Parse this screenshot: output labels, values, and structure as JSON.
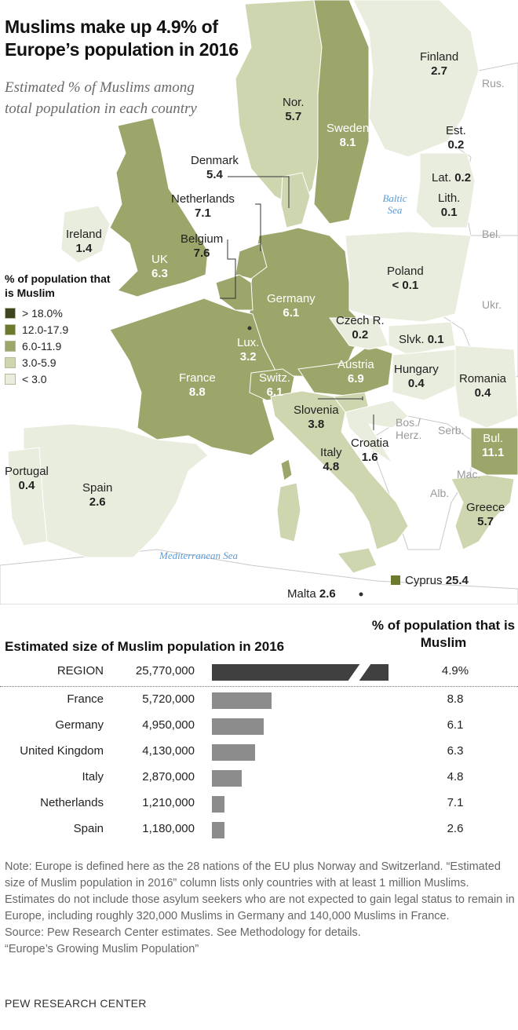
{
  "title": "Muslims make up 4.9% of Europe’s population in 2016",
  "subtitle": "Estimated % of Muslims among total population in each country",
  "colors": {
    "over_18": "#3e4420",
    "12_to_17_9": "#6c7a2b",
    "6_to_11_9": "#9da66a",
    "3_to_5_9": "#ced6b0",
    "under_3": "#e9eddd",
    "non_eu": "#ffffff",
    "region_bar": "#404040",
    "country_bar": "#8c8c8c",
    "sea_label": "#5b9bd5"
  },
  "legend": {
    "title": "% of population that is Muslim",
    "items": [
      {
        "label": "> 18.0%",
        "color": "#3e4420"
      },
      {
        "label": "12.0-17.9",
        "color": "#6c7a2b"
      },
      {
        "label": "6.0-11.9",
        "color": "#9da66a"
      },
      {
        "label": "3.0-5.9",
        "color": "#ced6b0"
      },
      {
        "label": "< 3.0",
        "color": "#e9eddd"
      }
    ]
  },
  "map_labels": {
    "finland": {
      "name": "Finland",
      "value": "2.7"
    },
    "norway": {
      "name": "Nor.",
      "value": "5.7"
    },
    "sweden": {
      "name": "Sweden",
      "value": "8.1"
    },
    "estonia": {
      "name": "Est.",
      "value": "0.2"
    },
    "denmark": {
      "name": "Denmark",
      "value": "5.4"
    },
    "latvia": {
      "name": "Lat.",
      "value": "0.2"
    },
    "lithuania": {
      "name": "Lith.",
      "value": "0.1"
    },
    "netherlands": {
      "name": "Netherlands",
      "value": "7.1"
    },
    "ireland": {
      "name": "Ireland",
      "value": "1.4"
    },
    "belgium": {
      "name": "Belgium",
      "value": "7.6"
    },
    "uk": {
      "name": "UK",
      "value": "6.3"
    },
    "poland": {
      "name": "Poland",
      "value": "< 0.1"
    },
    "germany": {
      "name": "Germany",
      "value": "6.1"
    },
    "czech": {
      "name": "Czech R.",
      "value": "0.2"
    },
    "slovakia": {
      "name": "Slvk.",
      "value": "0.1"
    },
    "luxembourg": {
      "name": "Lux.",
      "value": "3.2"
    },
    "austria": {
      "name": "Austria",
      "value": "6.9"
    },
    "hungary": {
      "name": "Hungary",
      "value": "0.4"
    },
    "romania": {
      "name": "Romania",
      "value": "0.4"
    },
    "france": {
      "name": "France",
      "value": "8.8"
    },
    "switzerland": {
      "name": "Switz.",
      "value": "6.1"
    },
    "slovenia": {
      "name": "Slovenia",
      "value": "3.8"
    },
    "croatia": {
      "name": "Croatia",
      "value": "1.6"
    },
    "bulgaria": {
      "name": "Bul.",
      "value": "11.1"
    },
    "italy": {
      "name": "Italy",
      "value": "4.8"
    },
    "portugal": {
      "name": "Portugal",
      "value": "0.4"
    },
    "spain": {
      "name": "Spain",
      "value": "2.6"
    },
    "greece": {
      "name": "Greece",
      "value": "5.7"
    },
    "cyprus": {
      "name": "Cyprus",
      "value": "25.4"
    },
    "malta": {
      "name": "Malta",
      "value": "2.6"
    }
  },
  "neighbors": {
    "russia": "Rus.",
    "belarus": "Bel.",
    "ukraine": "Ukr.",
    "bosnia": "Bos./ Herz.",
    "serbia": "Serb.",
    "macedonia": "Mac.",
    "albania": "Alb."
  },
  "seas": {
    "baltic": "Baltic Sea",
    "mediterranean": "Mediterranean Sea"
  },
  "bar_chart": {
    "title": "Estimated size of Muslim population in 2016",
    "pct_header": "% of population that is Muslim",
    "region": {
      "name": "REGION",
      "population": "25,770,000",
      "pct": "4.9%"
    },
    "rows": [
      {
        "name": "France",
        "population": "5,720,000",
        "pct": "8.8"
      },
      {
        "name": "Germany",
        "population": "4,950,000",
        "pct": "6.1"
      },
      {
        "name": "United Kingdom",
        "population": "4,130,000",
        "pct": "6.3"
      },
      {
        "name": "Italy",
        "population": "2,870,000",
        "pct": "4.8"
      },
      {
        "name": "Netherlands",
        "population": "1,210,000",
        "pct": "7.1"
      },
      {
        "name": "Spain",
        "population": "1,180,000",
        "pct": "2.6"
      }
    ]
  },
  "chart_data": {
    "type": "bar",
    "title": "Estimated size of Muslim population in 2016",
    "categories": [
      "France",
      "Germany",
      "United Kingdom",
      "Italy",
      "Netherlands",
      "Spain"
    ],
    "values": [
      5720000,
      4950000,
      4130000,
      2870000,
      1210000,
      1180000
    ],
    "region_total": 25770000,
    "pct_values": [
      8.8,
      6.1,
      6.3,
      4.8,
      7.1,
      2.6
    ],
    "region_pct": 4.9
  },
  "note": "Note: Europe is defined here as the 28 nations of the EU plus Norway and Switzerland. “Estimated size of Muslim population in 2016” column lists only countries with at least 1 million Muslims. Estimates do not include those asylum seekers who are not expected to gain legal status to remain in Europe, including roughly 320,000 Muslims in Germany and 140,000 Muslims in France.",
  "source": "Source: Pew Research Center estimates. See Methodology for details.",
  "report": "“Europe’s Growing Muslim Population”",
  "footer": "PEW RESEARCH CENTER"
}
